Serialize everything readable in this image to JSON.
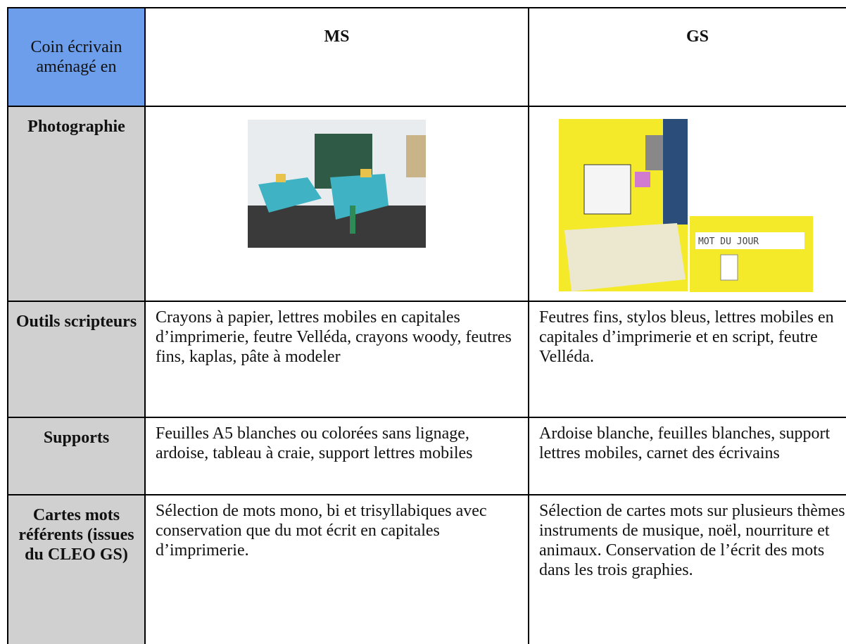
{
  "table": {
    "header": {
      "corner": "Coin écrivain aménagé en",
      "columns": [
        "MS",
        "GS"
      ]
    },
    "photo_row": {
      "label": "Photographie",
      "sign_text": "MOT DU JOUR"
    },
    "rows": [
      {
        "label": "Outils scripteurs",
        "cells": [
          "Crayons à papier, lettres mobiles en capitales d’imprimerie, feutre Velléda, crayons woody, feutres fins, kaplas, pâte à modeler",
          "Feutres fins, stylos bleus, lettres mobiles en capitales d’imprimerie et en script, feutre Velléda."
        ]
      },
      {
        "label": "Supports",
        "cells": [
          "Feuilles A5 blanches ou colorées sans lignage, ardoise, tableau à craie, support lettres mobiles",
          "Ardoise blanche, feuilles blanches, support lettres mobiles, carnet des écrivains"
        ]
      },
      {
        "label": "Cartes mots référents (issues du CLEO GS)",
        "cells": [
          "Sélection de mots mono, bi et trisyllabiques avec conservation que du mot écrit en capitales d’imprimerie.",
          "Sélection de cartes mots sur plusieurs thèmes : instruments de musique, noël, nourriture et animaux. Conservation de l’écrit des mots dans les trois graphies."
        ]
      }
    ]
  }
}
